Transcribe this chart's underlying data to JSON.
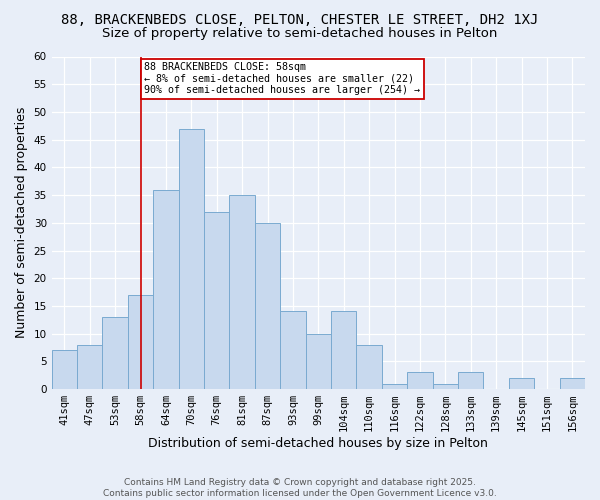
{
  "title": "88, BRACKENBEDS CLOSE, PELTON, CHESTER LE STREET, DH2 1XJ",
  "subtitle": "Size of property relative to semi-detached houses in Pelton",
  "xlabel": "Distribution of semi-detached houses by size in Pelton",
  "ylabel": "Number of semi-detached properties",
  "categories": [
    "41sqm",
    "47sqm",
    "53sqm",
    "58sqm",
    "64sqm",
    "70sqm",
    "76sqm",
    "81sqm",
    "87sqm",
    "93sqm",
    "99sqm",
    "104sqm",
    "110sqm",
    "116sqm",
    "122sqm",
    "128sqm",
    "133sqm",
    "139sqm",
    "145sqm",
    "151sqm",
    "156sqm"
  ],
  "values": [
    7,
    8,
    13,
    17,
    36,
    47,
    32,
    35,
    30,
    14,
    10,
    14,
    8,
    1,
    3,
    1,
    3,
    0,
    2,
    0,
    2
  ],
  "bar_color": "#c8d9ee",
  "bar_edge_color": "#7aaad0",
  "vline_x": 3,
  "vline_color": "#cc0000",
  "annotation_title": "88 BRACKENBEDS CLOSE: 58sqm",
  "annotation_line1": "← 8% of semi-detached houses are smaller (22)",
  "annotation_line2": "90% of semi-detached houses are larger (254) →",
  "annotation_box_color": "#ffffff",
  "annotation_box_edge": "#cc0000",
  "ylim": [
    0,
    60
  ],
  "yticks": [
    0,
    5,
    10,
    15,
    20,
    25,
    30,
    35,
    40,
    45,
    50,
    55,
    60
  ],
  "footer1": "Contains HM Land Registry data © Crown copyright and database right 2025.",
  "footer2": "Contains public sector information licensed under the Open Government Licence v3.0.",
  "bg_color": "#e8eef8",
  "plot_bg_color": "#e8eef8",
  "title_fontsize": 10,
  "subtitle_fontsize": 9.5,
  "tick_fontsize": 7.5,
  "label_fontsize": 9,
  "footer_fontsize": 6.5
}
